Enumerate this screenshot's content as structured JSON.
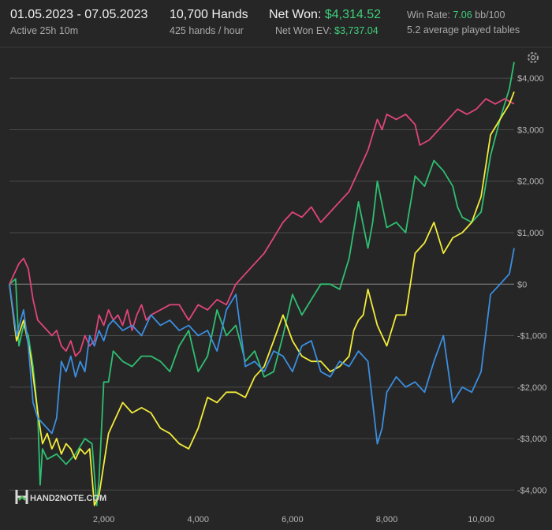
{
  "header": {
    "date_range": "01.05.2023 - 07.05.2023",
    "active": "Active 25h 10m",
    "hands": "10,700 Hands",
    "hands_per_hour": "425 hands / hour",
    "net_won_label": "Net Won:",
    "net_won_value": "$4,314.52",
    "net_won_ev_label": "Net Won  EV:",
    "net_won_ev_value": "$3,737.04",
    "win_rate_label": "Win Rate:",
    "win_rate_value": "7.06",
    "win_rate_unit": "bb/100",
    "tables": "5.2 average played tables"
  },
  "logo": {
    "text": "HAND2NOTE.COM"
  },
  "colors": {
    "background": "#262626",
    "grid": "#4a4a4a",
    "zero_line": "#8a8a8a",
    "green": "#2fbf71",
    "pink": "#e0457b",
    "yellow": "#f2ec3b",
    "blue": "#3b8ee0",
    "accent_text": "#3ecf7a"
  },
  "chart_data": {
    "type": "line",
    "title": "",
    "xlabel": "",
    "ylabel": "",
    "xlim": [
      0,
      10700
    ],
    "ylim": [
      -4500,
      4600
    ],
    "x_ticks": [
      {
        "value": 2000,
        "label": "2,000"
      },
      {
        "value": 4000,
        "label": "4,000"
      },
      {
        "value": 6000,
        "label": "6,000"
      },
      {
        "value": 8000,
        "label": "8,000"
      },
      {
        "value": 10000,
        "label": "10,000"
      }
    ],
    "y_ticks": [
      {
        "value": 4000,
        "label": "$4,000"
      },
      {
        "value": 3000,
        "label": "$3,000"
      },
      {
        "value": 2000,
        "label": "$2,000"
      },
      {
        "value": 1000,
        "label": "$1,000"
      },
      {
        "value": 0,
        "label": "$0"
      },
      {
        "value": -1000,
        "label": "-$1,000"
      },
      {
        "value": -2000,
        "label": "-$2,000"
      },
      {
        "value": -3000,
        "label": "-$3,000"
      },
      {
        "value": -4000,
        "label": "-$4,000"
      }
    ],
    "grid": true,
    "series": [
      {
        "color": "#2fbf71",
        "x": [
          0,
          130,
          200,
          300,
          400,
          500,
          600,
          650,
          700,
          800,
          1000,
          1200,
          1400,
          1600,
          1750,
          1850,
          1900,
          2000,
          2100,
          2200,
          2400,
          2600,
          2800,
          3000,
          3200,
          3400,
          3600,
          3800,
          4000,
          4200,
          4400,
          4600,
          4800,
          5000,
          5200,
          5400,
          5600,
          5800,
          6000,
          6200,
          6400,
          6600,
          6800,
          7000,
          7200,
          7400,
          7600,
          7700,
          7800,
          8000,
          8200,
          8400,
          8600,
          8800,
          9000,
          9200,
          9400,
          9500,
          9600,
          9800,
          10000,
          10200,
          10400,
          10600,
          10700
        ],
        "y": [
          0,
          100,
          -1200,
          -800,
          -1000,
          -1600,
          -2500,
          -3900,
          -3200,
          -3400,
          -3300,
          -3500,
          -3300,
          -3000,
          -3100,
          -4300,
          -3800,
          -1900,
          -1900,
          -1300,
          -1500,
          -1600,
          -1400,
          -1400,
          -1500,
          -1700,
          -1200,
          -900,
          -1700,
          -1400,
          -500,
          -1000,
          -800,
          -1500,
          -1300,
          -1800,
          -1700,
          -1000,
          -200,
          -600,
          -300,
          0,
          0,
          -100,
          500,
          1600,
          700,
          1200,
          2000,
          1100,
          1200,
          1000,
          2100,
          1900,
          2400,
          2200,
          1900,
          1500,
          1300,
          1200,
          1400,
          2500,
          3200,
          3800,
          4314
        ]
      },
      {
        "color": "#e0457b",
        "x": [
          0,
          100,
          200,
          300,
          400,
          500,
          600,
          700,
          800,
          900,
          1000,
          1100,
          1200,
          1300,
          1400,
          1500,
          1600,
          1700,
          1800,
          1900,
          2000,
          2100,
          2200,
          2300,
          2400,
          2500,
          2600,
          2700,
          2800,
          2900,
          3000,
          3200,
          3400,
          3600,
          3800,
          4000,
          4200,
          4400,
          4600,
          4800,
          5000,
          5200,
          5400,
          5600,
          5800,
          6000,
          6200,
          6400,
          6600,
          6800,
          7000,
          7200,
          7400,
          7600,
          7800,
          7900,
          8000,
          8200,
          8400,
          8600,
          8700,
          8900,
          9100,
          9300,
          9500,
          9700,
          9900,
          10100,
          10300,
          10500,
          10700
        ],
        "y": [
          0,
          200,
          400,
          500,
          300,
          -300,
          -700,
          -800,
          -900,
          -1000,
          -900,
          -1200,
          -1300,
          -1100,
          -1400,
          -1300,
          -1000,
          -1200,
          -1100,
          -600,
          -800,
          -500,
          -700,
          -600,
          -800,
          -500,
          -900,
          -600,
          -400,
          -700,
          -600,
          -500,
          -400,
          -400,
          -700,
          -400,
          -500,
          -300,
          -400,
          0,
          200,
          400,
          600,
          900,
          1200,
          1400,
          1300,
          1500,
          1200,
          1400,
          1600,
          1800,
          2200,
          2600,
          3200,
          3000,
          3300,
          3200,
          3300,
          3100,
          2700,
          2800,
          3000,
          3200,
          3400,
          3300,
          3400,
          3600,
          3500,
          3600,
          3500
        ]
      },
      {
        "color": "#f2ec3b",
        "x": [
          0,
          150,
          300,
          450,
          600,
          700,
          800,
          900,
          1000,
          1100,
          1200,
          1300,
          1400,
          1500,
          1600,
          1700,
          1800,
          1900,
          2000,
          2100,
          2200,
          2400,
          2600,
          2800,
          3000,
          3200,
          3400,
          3600,
          3800,
          4000,
          4200,
          4400,
          4600,
          4800,
          5000,
          5200,
          5400,
          5600,
          5800,
          6000,
          6200,
          6400,
          6600,
          6800,
          7000,
          7200,
          7300,
          7400,
          7500,
          7600,
          7800,
          8000,
          8200,
          8400,
          8600,
          8800,
          9000,
          9200,
          9400,
          9600,
          9800,
          10000,
          10200,
          10400,
          10600,
          10700
        ],
        "y": [
          0,
          -1100,
          -700,
          -1400,
          -2500,
          -3100,
          -2900,
          -3200,
          -3000,
          -3300,
          -3100,
          -3200,
          -3400,
          -3200,
          -3300,
          -3200,
          -4300,
          -4100,
          -3500,
          -2900,
          -2700,
          -2300,
          -2500,
          -2400,
          -2500,
          -2800,
          -2900,
          -3100,
          -3200,
          -2800,
          -2200,
          -2300,
          -2100,
          -2100,
          -2200,
          -1800,
          -1600,
          -1100,
          -600,
          -1100,
          -1400,
          -1500,
          -1500,
          -1700,
          -1600,
          -1400,
          -900,
          -700,
          -600,
          -100,
          -800,
          -1200,
          -600,
          -600,
          600,
          800,
          1200,
          600,
          900,
          1000,
          1200,
          1700,
          2900,
          3200,
          3500,
          3737
        ]
      },
      {
        "color": "#3b8ee0",
        "x": [
          0,
          150,
          300,
          400,
          500,
          600,
          700,
          800,
          900,
          1000,
          1100,
          1200,
          1300,
          1400,
          1500,
          1600,
          1700,
          1800,
          1900,
          2000,
          2100,
          2200,
          2400,
          2600,
          2800,
          3000,
          3200,
          3400,
          3600,
          3800,
          4000,
          4200,
          4400,
          4600,
          4800,
          5000,
          5200,
          5400,
          5600,
          5800,
          6000,
          6200,
          6400,
          6600,
          6800,
          7000,
          7200,
          7400,
          7600,
          7800,
          7900,
          8000,
          8200,
          8400,
          8600,
          8800,
          9000,
          9200,
          9400,
          9600,
          9800,
          10000,
          10200,
          10400,
          10600,
          10700
        ],
        "y": [
          0,
          -1000,
          -500,
          -1200,
          -2300,
          -2600,
          -2700,
          -2800,
          -2900,
          -2600,
          -1500,
          -1700,
          -1400,
          -1800,
          -1500,
          -1700,
          -1000,
          -1200,
          -900,
          -1100,
          -800,
          -700,
          -900,
          -800,
          -1000,
          -600,
          -800,
          -700,
          -900,
          -800,
          -1000,
          -900,
          -1300,
          -500,
          -200,
          -1600,
          -1500,
          -1700,
          -1300,
          -1400,
          -1700,
          -1200,
          -1100,
          -1700,
          -1800,
          -1500,
          -1600,
          -1300,
          -1500,
          -3100,
          -2800,
          -2100,
          -1800,
          -2000,
          -1900,
          -2100,
          -1500,
          -1000,
          -2300,
          -2000,
          -2100,
          -1700,
          -200,
          0,
          200,
          700
        ]
      }
    ]
  }
}
